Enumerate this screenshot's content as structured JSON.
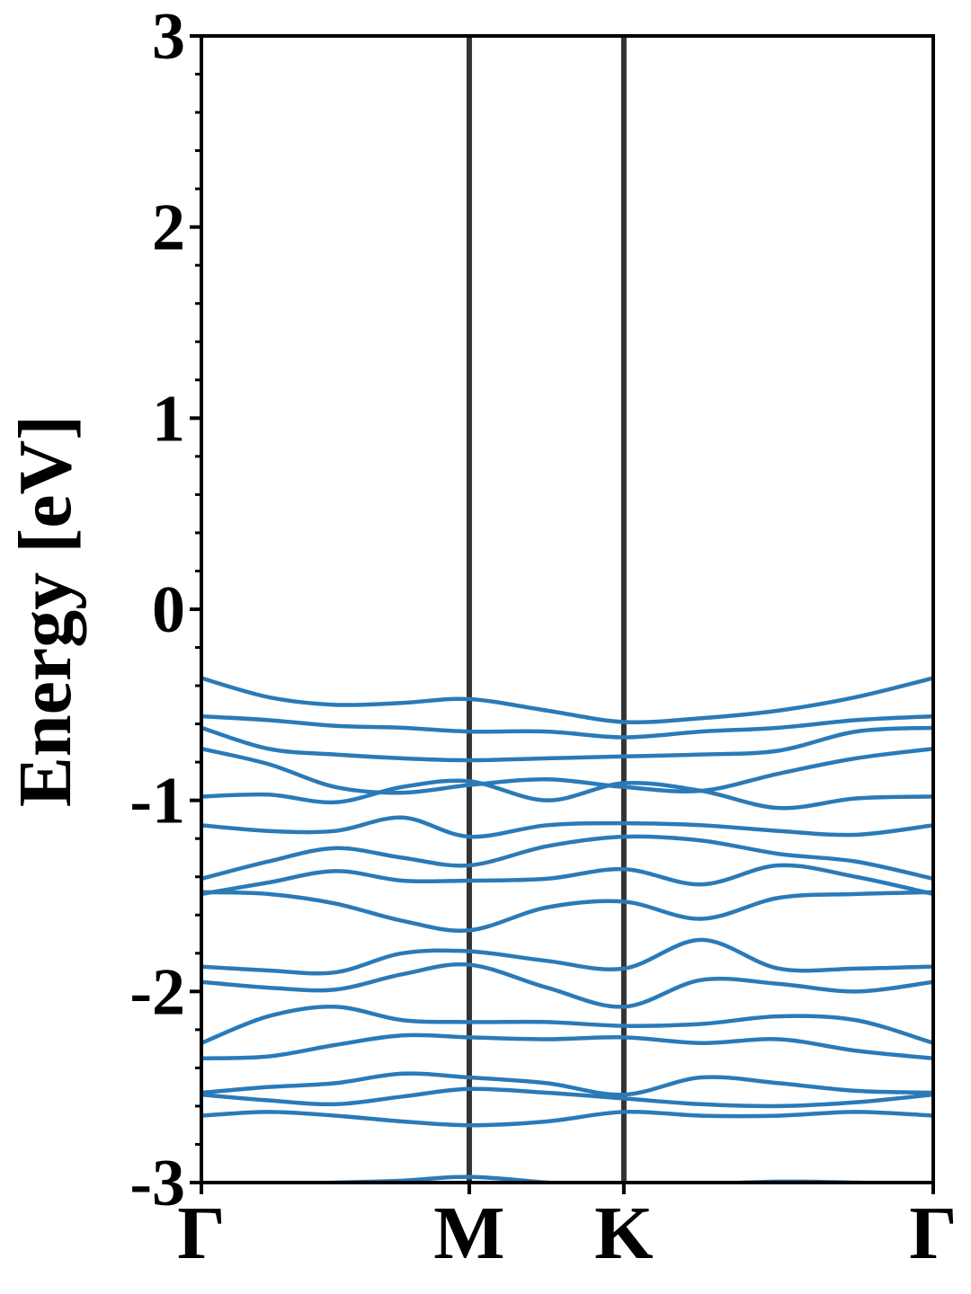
{
  "chart_data": {
    "type": "line",
    "ylabel": "Energy [eV]",
    "color": "#2a7ab8",
    "kpath_color": "#333333",
    "kpath_lines": true,
    "xlim": [
      0,
      2.732
    ],
    "ylim": [
      -3,
      3
    ],
    "xticks": [
      {
        "value": 0,
        "label": "Γ"
      },
      {
        "value": 1,
        "label": "M"
      },
      {
        "value": 1.577,
        "label": "K"
      },
      {
        "value": 2.732,
        "label": "Γ"
      }
    ],
    "yticks": [
      -3,
      -2,
      -1,
      0,
      1,
      2,
      3
    ],
    "yminorticks": [
      -2.8,
      -2.6,
      -2.4,
      -2.2,
      -1.8,
      -1.6,
      -1.4,
      -1.2,
      -0.8,
      -0.6,
      -0.4,
      -0.2,
      0.2,
      0.4,
      0.6,
      0.8,
      1.2,
      1.4,
      1.6,
      1.8,
      2.2,
      2.4,
      2.6,
      2.8
    ],
    "x": [
      0,
      0.25,
      0.5,
      0.75,
      1,
      1.29,
      1.577,
      1.866,
      2.155,
      2.443,
      2.732
    ],
    "series": [
      {
        "values": [
          -0.36,
          -0.46,
          -0.5,
          -0.49,
          -0.47,
          -0.53,
          -0.59,
          -0.57,
          -0.53,
          -0.46,
          -0.36
        ]
      },
      {
        "values": [
          -0.56,
          -0.58,
          -0.61,
          -0.62,
          -0.64,
          -0.64,
          -0.67,
          -0.64,
          -0.62,
          -0.58,
          -0.56
        ]
      },
      {
        "values": [
          -0.62,
          -0.73,
          -0.76,
          -0.78,
          -0.79,
          -0.78,
          -0.77,
          -0.76,
          -0.74,
          -0.64,
          -0.62
        ]
      },
      {
        "values": [
          -0.73,
          -0.81,
          -0.93,
          -0.96,
          -0.92,
          -0.89,
          -0.93,
          -0.95,
          -0.86,
          -0.78,
          -0.73
        ]
      },
      {
        "values": [
          -0.98,
          -0.97,
          -1.01,
          -0.93,
          -0.9,
          -1.0,
          -0.91,
          -0.95,
          -1.04,
          -0.99,
          -0.98
        ]
      },
      {
        "values": [
          -1.13,
          -1.16,
          -1.16,
          -1.09,
          -1.19,
          -1.13,
          -1.12,
          -1.13,
          -1.16,
          -1.18,
          -1.13
        ]
      },
      {
        "values": [
          -1.41,
          -1.32,
          -1.25,
          -1.3,
          -1.34,
          -1.24,
          -1.19,
          -1.21,
          -1.28,
          -1.32,
          -1.41
        ]
      },
      {
        "values": [
          -1.49,
          -1.43,
          -1.37,
          -1.42,
          -1.42,
          -1.41,
          -1.36,
          -1.44,
          -1.34,
          -1.4,
          -1.49
        ]
      },
      {
        "values": [
          -1.48,
          -1.49,
          -1.54,
          -1.63,
          -1.68,
          -1.56,
          -1.53,
          -1.62,
          -1.51,
          -1.49,
          -1.48
        ]
      },
      {
        "values": [
          -1.87,
          -1.89,
          -1.9,
          -1.8,
          -1.79,
          -1.84,
          -1.88,
          -1.73,
          -1.88,
          -1.88,
          -1.87
        ]
      },
      {
        "values": [
          -1.95,
          -1.98,
          -1.99,
          -1.91,
          -1.86,
          -1.98,
          -2.08,
          -1.94,
          -1.96,
          -2.0,
          -1.95
        ]
      },
      {
        "values": [
          -2.27,
          -2.13,
          -2.08,
          -2.15,
          -2.16,
          -2.16,
          -2.18,
          -2.17,
          -2.13,
          -2.15,
          -2.27
        ]
      },
      {
        "values": [
          -2.35,
          -2.34,
          -2.28,
          -2.23,
          -2.24,
          -2.25,
          -2.24,
          -2.27,
          -2.25,
          -2.31,
          -2.35
        ]
      },
      {
        "values": [
          -2.53,
          -2.5,
          -2.48,
          -2.43,
          -2.45,
          -2.48,
          -2.54,
          -2.45,
          -2.48,
          -2.52,
          -2.53
        ]
      },
      {
        "values": [
          -2.54,
          -2.57,
          -2.59,
          -2.55,
          -2.51,
          -2.53,
          -2.56,
          -2.59,
          -2.6,
          -2.58,
          -2.54
        ]
      },
      {
        "values": [
          -2.65,
          -2.63,
          -2.65,
          -2.68,
          -2.7,
          -2.68,
          -2.63,
          -2.65,
          -2.65,
          -2.63,
          -2.65
        ]
      },
      {
        "values": [
          -3.01,
          -3.01,
          -3.0,
          -2.99,
          -2.97,
          -3.0,
          -3.03,
          -3.01,
          -2.995,
          -3.0,
          -3.01
        ]
      }
    ]
  }
}
